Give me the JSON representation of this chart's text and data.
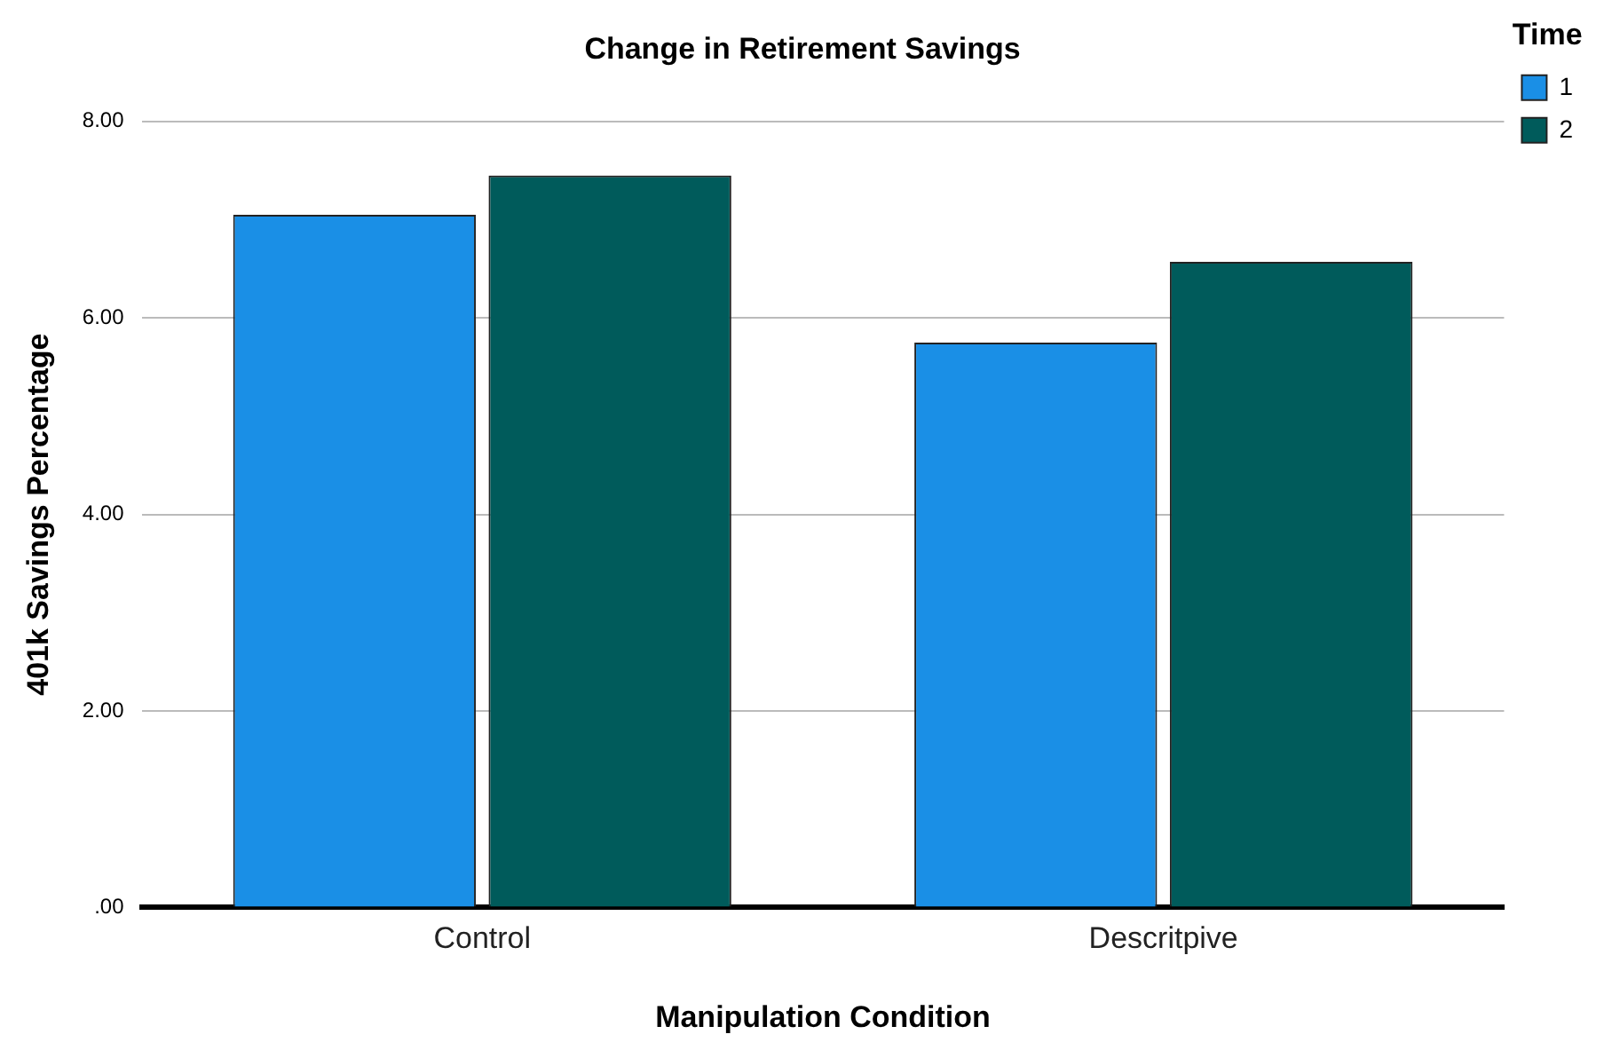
{
  "chart_data": {
    "type": "bar",
    "title": "Change in Retirement Savings",
    "xlabel": "Manipulation Condition",
    "ylabel": "401k Savings Percentage",
    "legend_title": "Time",
    "categories": [
      "Control",
      "Descritpive"
    ],
    "series": [
      {
        "name": "1",
        "color": "#1a8fe6",
        "values": [
          7.05,
          5.75
        ]
      },
      {
        "name": "2",
        "color": "#005b5b",
        "values": [
          7.45,
          6.57
        ]
      }
    ],
    "ylim": [
      0,
      8
    ],
    "yticks": [
      {
        "value": 0,
        "label": ".00"
      },
      {
        "value": 2,
        "label": "2.00"
      },
      {
        "value": 4,
        "label": "4.00"
      },
      {
        "value": 6,
        "label": "6.00"
      },
      {
        "value": 8,
        "label": "8.00"
      }
    ],
    "grid": "y",
    "legend": "top right"
  }
}
